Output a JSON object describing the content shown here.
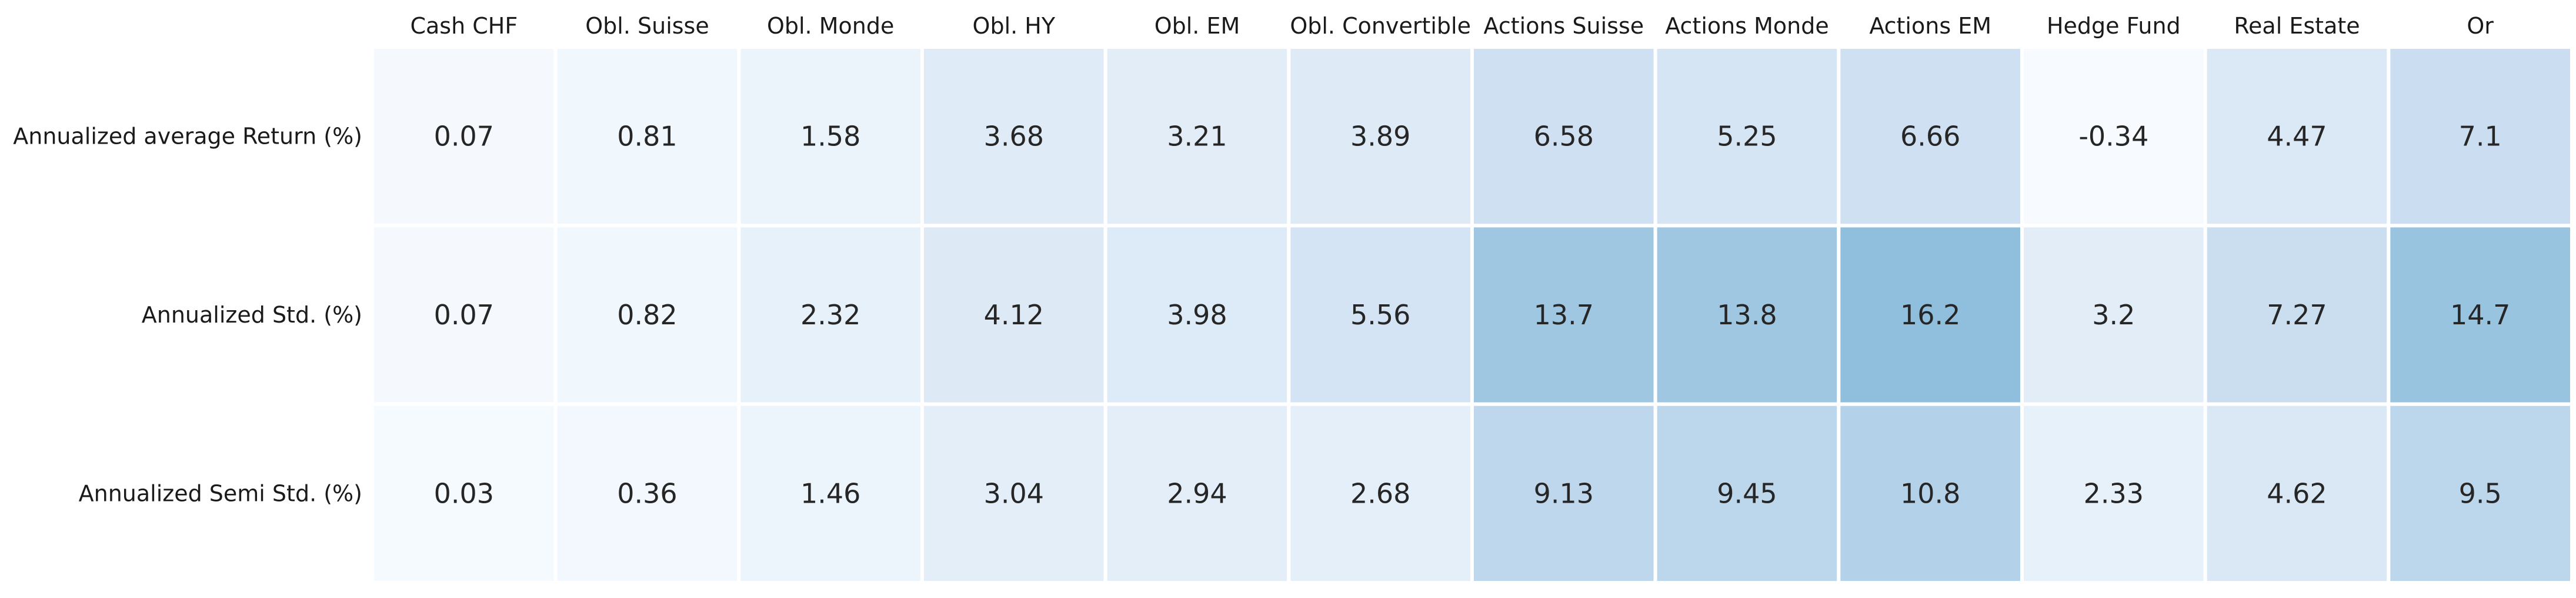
{
  "chart_data": {
    "type": "heatmap",
    "columns": [
      "Cash CHF",
      "Obl. Suisse",
      "Obl. Monde",
      "Obl. HY",
      "Obl. EM",
      "Obl. Convertible",
      "Actions Suisse",
      "Actions Monde",
      "Actions EM",
      "Hedge Fund",
      "Real Estate",
      "Or"
    ],
    "rows": [
      "Annualized average Return (%)",
      "Annualized Std. (%)",
      "Annualized Semi Std. (%)"
    ],
    "values": [
      [
        0.07,
        0.81,
        1.58,
        3.68,
        3.21,
        3.89,
        6.58,
        5.25,
        6.66,
        -0.34,
        4.47,
        7.1
      ],
      [
        0.07,
        0.82,
        2.32,
        4.12,
        3.98,
        5.56,
        13.7,
        13.8,
        16.2,
        3.2,
        7.27,
        14.7
      ],
      [
        0.03,
        0.36,
        1.46,
        3.04,
        2.94,
        2.68,
        9.13,
        9.45,
        10.8,
        2.33,
        4.62,
        9.5
      ]
    ],
    "value_labels": [
      [
        "0.07",
        "0.81",
        "1.58",
        "3.68",
        "3.21",
        "3.89",
        "6.58",
        "5.25",
        "6.66",
        "-0.34",
        "4.47",
        "7.1"
      ],
      [
        "0.07",
        "0.82",
        "2.32",
        "4.12",
        "3.98",
        "5.56",
        "13.7",
        "13.8",
        "16.2",
        "3.2",
        "7.27",
        "14.7"
      ],
      [
        "0.03",
        "0.36",
        "1.46",
        "3.04",
        "2.94",
        "2.68",
        "9.13",
        "9.45",
        "10.8",
        "2.33",
        "4.62",
        "9.5"
      ]
    ],
    "colorscale": {
      "name": "Blues",
      "vmin": -0.34,
      "vmax": 16.2,
      "low": "#f7fbff",
      "mid": "#c6dbef",
      "high": "#8fbfdd"
    },
    "cell_border_color": "#ffffff",
    "colorbar": false,
    "grid": false
  }
}
